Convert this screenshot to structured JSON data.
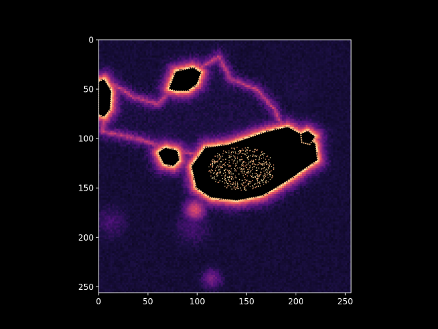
{
  "figure": {
    "background": "#000000",
    "axis_color": "#ffffff",
    "text_color": "#ffffff"
  },
  "chart_data": {
    "type": "heatmap",
    "title": "",
    "xlabel": "",
    "ylabel": "",
    "colormap": "magma",
    "image_size": [
      256,
      256
    ],
    "xlim": [
      0,
      256
    ],
    "ylim": [
      256,
      0
    ],
    "x_ticks": [
      0,
      50,
      100,
      150,
      200,
      250
    ],
    "x_tick_labels": [
      "0",
      "50",
      "100",
      "150",
      "200",
      "250"
    ],
    "y_ticks": [
      0,
      50,
      100,
      150,
      200,
      250
    ],
    "y_tick_labels": [
      "0",
      "50",
      "100",
      "150",
      "200",
      "250"
    ],
    "colorbar": false,
    "grid": false,
    "features": [
      {
        "name": "cell-body-saturated-region",
        "intensity": "saturated",
        "center": [
          148,
          128
        ]
      },
      {
        "name": "nucleus-speckle",
        "intensity": "high",
        "center": [
          145,
          130
        ]
      },
      {
        "name": "upper-protrusion-blob",
        "intensity": "saturated",
        "center": [
          84,
          36
        ]
      },
      {
        "name": "left-edge-blob",
        "intensity": "saturated",
        "center": [
          5,
          58
        ]
      },
      {
        "name": "left-junction-blob",
        "intensity": "saturated",
        "center": [
          68,
          118
        ]
      },
      {
        "name": "right-lobe-blob",
        "intensity": "saturated",
        "center": [
          210,
          98
        ]
      },
      {
        "name": "lower-diffuse-spot",
        "intensity": "medium",
        "center": [
          98,
          172
        ]
      },
      {
        "name": "bottom-diffuse-spot",
        "intensity": "low",
        "center": [
          115,
          242
        ]
      }
    ]
  }
}
